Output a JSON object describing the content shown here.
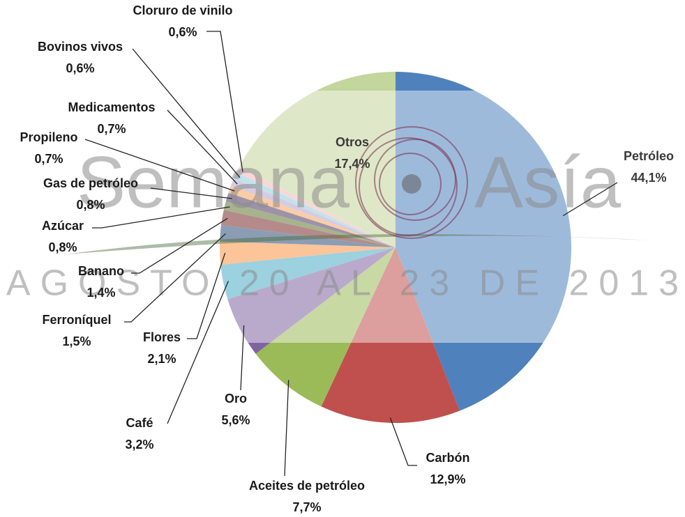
{
  "chart_data": {
    "type": "pie",
    "categories": [
      "Petróleo",
      "Carbón",
      "Aceites de petróleo",
      "Oro",
      "Café",
      "Flores",
      "Ferroníquel",
      "Banano",
      "Azúcar",
      "Gas de petróleo",
      "Propileno",
      "Medicamentos",
      "Bovinos vivos",
      "Cloruro de vinilo",
      "Otros"
    ],
    "values": [
      44.1,
      12.9,
      7.7,
      5.6,
      3.2,
      2.1,
      1.5,
      1.4,
      0.8,
      0.8,
      0.7,
      0.7,
      0.6,
      0.6,
      17.4
    ],
    "value_labels": [
      "44,1%",
      "12,9%",
      "7,7%",
      "5,6%",
      "3,2%",
      "2,1%",
      "1,5%",
      "1,4%",
      "0,8%",
      "0,8%",
      "0,7%",
      "0,7%",
      "0,6%",
      "0,6%",
      "17,4%"
    ],
    "colors": [
      "#4f81bd",
      "#c0504d",
      "#9bbb59",
      "#8064a2",
      "#4bacc6",
      "#f79646",
      "#2c4d75",
      "#772c2a",
      "#5f7530",
      "#4d3b62",
      "#f9a35b",
      "#b3a2c7",
      "#93cddd",
      "#f2b8b7",
      "#c3d69b"
    ],
    "watermark": {
      "title": "Semana",
      "title2": "Asía",
      "subtitle": "AGOSTO 20 AL 23 DE 2013"
    }
  }
}
